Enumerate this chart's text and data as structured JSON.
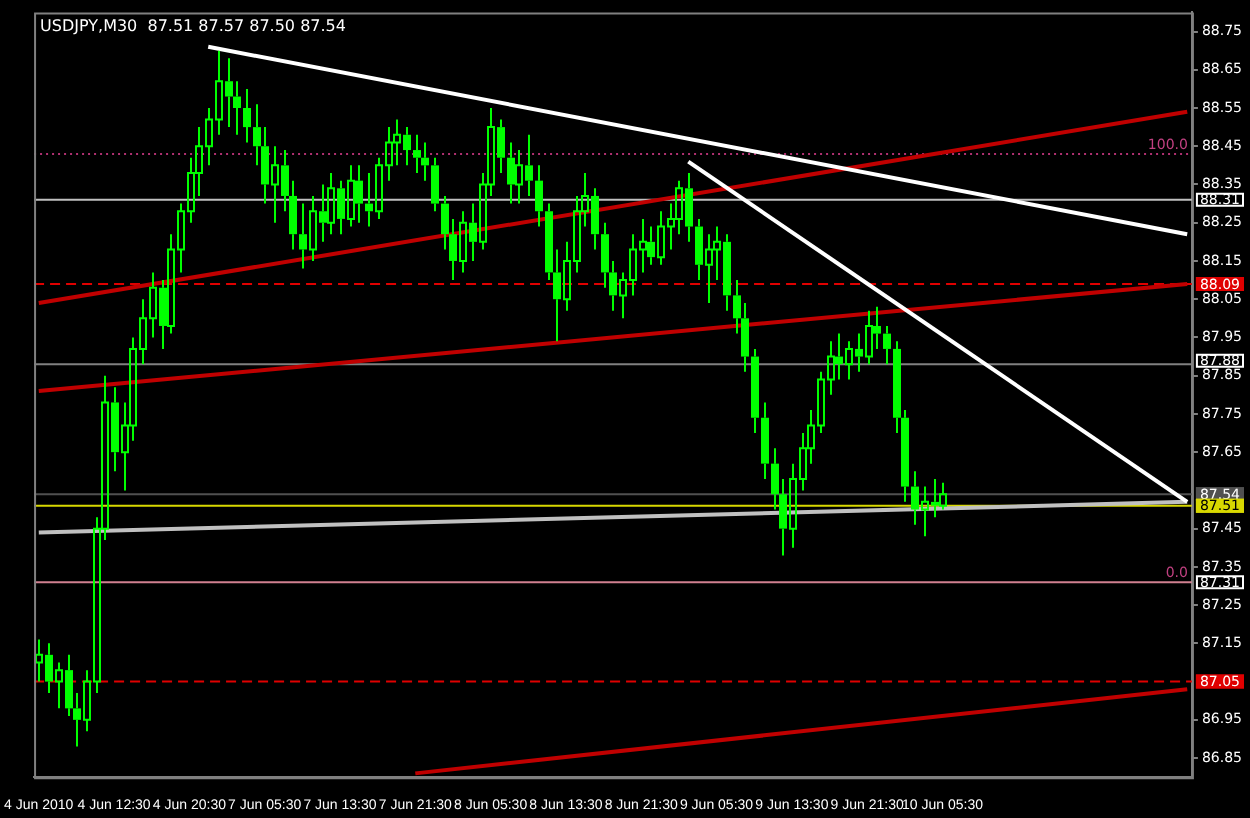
{
  "chart_data": {
    "type": "candlestick",
    "title": "USDJPY,M30  87.51 87.57 87.50 87.54",
    "categories": [
      "4 Jun 2010",
      null,
      null,
      null,
      null,
      null,
      null,
      null,
      "4 Jun 12:30",
      null,
      null,
      null,
      null,
      null,
      null,
      null,
      "4 Jun 20:30",
      null,
      null,
      null,
      null,
      null,
      null,
      null,
      "7 Jun 05:30",
      null,
      null,
      null,
      null,
      null,
      null,
      null,
      "7 Jun 13:30",
      null,
      null,
      null,
      null,
      null,
      null,
      null,
      "7 Jun 21:30",
      null,
      null,
      null,
      null,
      null,
      null,
      null,
      "8 Jun 05:30",
      null,
      null,
      null,
      null,
      null,
      null,
      null,
      "8 Jun 13:30",
      null,
      null,
      null,
      null,
      null,
      null,
      null,
      "8 Jun 21:30",
      null,
      null,
      null,
      null,
      null,
      null,
      null,
      "9 Jun 05:30",
      null,
      null,
      null,
      null,
      null,
      null,
      null,
      "9 Jun 13:30",
      null,
      null,
      null,
      null,
      null,
      null,
      null,
      "9 Jun 21:30",
      null,
      null,
      null,
      null,
      null,
      null,
      null,
      "10 Jun 05:30",
      null,
      null,
      null,
      null,
      null,
      null,
      null,
      null,
      null,
      null,
      null,
      null,
      null,
      null,
      null,
      null,
      null,
      null,
      null,
      null,
      null,
      null,
      null,
      null,
      null,
      null
    ],
    "series": [
      {
        "color": "#00ff00",
        "ohlc": [
          [
            87.1,
            87.16,
            87.05,
            87.12
          ],
          [
            87.12,
            87.15,
            87.02,
            87.05
          ],
          [
            87.05,
            87.1,
            86.98,
            87.08
          ],
          [
            87.08,
            87.12,
            86.96,
            86.98
          ],
          [
            86.98,
            87.02,
            86.88,
            86.95
          ],
          [
            86.95,
            87.08,
            86.92,
            87.05
          ],
          [
            87.05,
            87.48,
            87.02,
            87.45
          ],
          [
            87.45,
            87.85,
            87.42,
            87.78
          ],
          [
            87.78,
            87.82,
            87.6,
            87.65
          ],
          [
            87.65,
            87.78,
            87.55,
            87.72
          ],
          [
            87.72,
            87.95,
            87.68,
            87.92
          ],
          [
            87.92,
            88.05,
            87.88,
            88.0
          ],
          [
            88.0,
            88.12,
            87.95,
            88.08
          ],
          [
            88.08,
            88.1,
            87.92,
            87.98
          ],
          [
            87.98,
            88.22,
            87.96,
            88.18
          ],
          [
            88.18,
            88.3,
            88.12,
            88.28
          ],
          [
            88.28,
            88.42,
            88.25,
            88.38
          ],
          [
            88.38,
            88.5,
            88.32,
            88.45
          ],
          [
            88.45,
            88.55,
            88.4,
            88.52
          ],
          [
            88.52,
            88.7,
            88.48,
            88.62
          ],
          [
            88.62,
            88.68,
            88.5,
            88.58
          ],
          [
            88.58,
            88.62,
            88.48,
            88.55
          ],
          [
            88.55,
            88.6,
            88.46,
            88.5
          ],
          [
            88.5,
            88.56,
            88.4,
            88.45
          ],
          [
            88.45,
            88.5,
            88.3,
            88.35
          ],
          [
            88.35,
            88.45,
            88.25,
            88.4
          ],
          [
            88.4,
            88.44,
            88.28,
            88.32
          ],
          [
            88.32,
            88.36,
            88.18,
            88.22
          ],
          [
            88.22,
            88.3,
            88.13,
            88.18
          ],
          [
            88.18,
            88.32,
            88.15,
            88.28
          ],
          [
            88.28,
            88.35,
            88.2,
            88.25
          ],
          [
            88.25,
            88.38,
            88.22,
            88.34
          ],
          [
            88.34,
            88.36,
            88.22,
            88.26
          ],
          [
            88.26,
            88.4,
            88.24,
            88.36
          ],
          [
            88.36,
            88.4,
            88.25,
            88.3
          ],
          [
            88.3,
            88.38,
            88.24,
            88.28
          ],
          [
            88.28,
            88.42,
            88.26,
            88.4
          ],
          [
            88.4,
            88.5,
            88.36,
            88.46
          ],
          [
            88.46,
            88.52,
            88.4,
            88.48
          ],
          [
            88.48,
            88.5,
            88.4,
            88.44
          ],
          [
            88.44,
            88.48,
            88.38,
            88.42
          ],
          [
            88.42,
            88.46,
            88.36,
            88.4
          ],
          [
            88.4,
            88.42,
            88.28,
            88.3
          ],
          [
            88.3,
            88.32,
            88.18,
            88.22
          ],
          [
            88.22,
            88.26,
            88.1,
            88.15
          ],
          [
            88.15,
            88.28,
            88.12,
            88.25
          ],
          [
            88.25,
            88.3,
            88.15,
            88.2
          ],
          [
            88.2,
            88.38,
            88.18,
            88.35
          ],
          [
            88.35,
            88.55,
            88.32,
            88.5
          ],
          [
            88.5,
            88.52,
            88.38,
            88.42
          ],
          [
            88.42,
            88.46,
            88.3,
            88.35
          ],
          [
            88.35,
            88.44,
            88.3,
            88.4
          ],
          [
            88.4,
            88.48,
            88.32,
            88.36
          ],
          [
            88.36,
            88.4,
            88.24,
            88.28
          ],
          [
            88.28,
            88.3,
            88.1,
            88.12
          ],
          [
            88.12,
            88.18,
            87.94,
            88.05
          ],
          [
            88.05,
            88.2,
            88.02,
            88.15
          ],
          [
            88.15,
            88.32,
            88.12,
            88.28
          ],
          [
            88.28,
            88.38,
            88.24,
            88.32
          ],
          [
            88.32,
            88.34,
            88.18,
            88.22
          ],
          [
            88.22,
            88.25,
            88.08,
            88.12
          ],
          [
            88.12,
            88.15,
            88.02,
            88.06
          ],
          [
            88.06,
            88.12,
            88.0,
            88.1
          ],
          [
            88.1,
            88.22,
            88.06,
            88.18
          ],
          [
            88.18,
            88.26,
            88.12,
            88.2
          ],
          [
            88.2,
            88.24,
            88.14,
            88.16
          ],
          [
            88.16,
            88.28,
            88.14,
            88.24
          ],
          [
            88.24,
            88.3,
            88.18,
            88.26
          ],
          [
            88.26,
            88.36,
            88.22,
            88.34
          ],
          [
            88.34,
            88.38,
            88.2,
            88.24
          ],
          [
            88.24,
            88.26,
            88.1,
            88.14
          ],
          [
            88.14,
            88.22,
            88.04,
            88.18
          ],
          [
            88.18,
            88.24,
            88.1,
            88.2
          ],
          [
            88.2,
            88.22,
            88.02,
            88.06
          ],
          [
            88.06,
            88.1,
            87.96,
            88.0
          ],
          [
            88.0,
            88.04,
            87.86,
            87.9
          ],
          [
            87.9,
            87.92,
            87.7,
            87.74
          ],
          [
            87.74,
            87.78,
            87.58,
            87.62
          ],
          [
            87.62,
            87.66,
            87.5,
            87.54
          ],
          [
            87.54,
            87.58,
            87.38,
            87.45
          ],
          [
            87.45,
            87.62,
            87.4,
            87.58
          ],
          [
            87.58,
            87.7,
            87.55,
            87.66
          ],
          [
            87.66,
            87.76,
            87.62,
            87.72
          ],
          [
            87.72,
            87.86,
            87.7,
            87.84
          ],
          [
            87.84,
            87.94,
            87.8,
            87.9
          ],
          [
            87.9,
            87.96,
            87.84,
            87.88
          ],
          [
            87.88,
            87.94,
            87.84,
            87.92
          ],
          [
            87.92,
            87.96,
            87.86,
            87.9
          ],
          [
            87.9,
            88.02,
            87.88,
            87.98
          ],
          [
            87.98,
            88.03,
            87.92,
            87.96
          ],
          [
            87.96,
            87.98,
            87.88,
            87.92
          ],
          [
            87.92,
            87.94,
            87.7,
            87.74
          ],
          [
            87.74,
            87.76,
            87.52,
            87.56
          ],
          [
            87.56,
            87.6,
            87.46,
            87.5
          ],
          [
            87.5,
            87.56,
            87.43,
            87.52
          ],
          [
            87.52,
            87.58,
            87.48,
            87.51
          ],
          [
            87.51,
            87.57,
            87.5,
            87.54
          ],
          null,
          null,
          null,
          null,
          null,
          null,
          null,
          null,
          null,
          null,
          null,
          null,
          null,
          null,
          null,
          null,
          null,
          null,
          null,
          null,
          null,
          null,
          null,
          null,
          null,
          null
        ]
      },
      {
        "type": "line",
        "color": "#ffffff",
        "values": [
          null,
          null,
          null,
          null,
          null,
          null,
          null,
          null,
          null,
          null,
          null,
          null,
          null,
          null,
          null,
          null,
          null,
          null,
          88.71,
          null,
          null,
          null,
          null,
          null,
          null,
          null,
          null,
          null,
          null,
          null,
          null,
          null,
          null,
          null,
          null,
          null,
          null,
          null,
          null,
          null,
          null,
          null,
          null,
          null,
          null,
          null,
          null,
          null,
          null,
          null,
          null,
          null,
          null,
          null,
          null,
          null,
          null,
          null,
          null,
          null,
          null,
          null,
          null,
          null,
          null,
          null,
          null,
          null,
          null,
          null,
          null,
          null,
          null,
          null,
          null,
          null,
          null,
          null,
          null,
          null,
          null,
          null,
          null,
          null,
          null,
          null,
          null,
          null,
          null,
          null,
          null,
          null,
          null,
          null,
          null,
          null,
          null,
          null,
          null,
          null,
          null,
          null,
          null,
          null,
          null,
          null,
          null,
          null,
          null,
          null,
          null,
          null,
          null,
          null,
          null,
          null,
          null,
          null,
          null,
          null,
          null,
          null,
          88.22
        ]
      },
      {
        "type": "line",
        "color": "#ffffff",
        "values": [
          null,
          null,
          null,
          null,
          null,
          null,
          null,
          null,
          null,
          null,
          null,
          null,
          null,
          null,
          null,
          null,
          null,
          null,
          null,
          null,
          null,
          null,
          null,
          null,
          null,
          null,
          null,
          null,
          null,
          null,
          null,
          null,
          null,
          null,
          null,
          null,
          null,
          null,
          null,
          null,
          null,
          null,
          null,
          null,
          null,
          null,
          null,
          null,
          null,
          null,
          null,
          null,
          null,
          null,
          null,
          null,
          null,
          null,
          null,
          null,
          null,
          null,
          null,
          null,
          null,
          null,
          null,
          null,
          null,
          88.41,
          null,
          null,
          null,
          null,
          null,
          null,
          null,
          null,
          null,
          null,
          null,
          null,
          null,
          null,
          null,
          null,
          null,
          null,
          null,
          null,
          null,
          null,
          null,
          null,
          null,
          null,
          null,
          null,
          null,
          null,
          null,
          null,
          null,
          null,
          null,
          null,
          null,
          null,
          null,
          null,
          null,
          null,
          null,
          null,
          null,
          null,
          null,
          null,
          null,
          null,
          null,
          null,
          87.52
        ]
      },
      {
        "type": "line",
        "color": "#c00000",
        "values": [
          88.04,
          null,
          null,
          null,
          null,
          null,
          null,
          null,
          null,
          null,
          null,
          null,
          null,
          null,
          null,
          null,
          null,
          null,
          null,
          null,
          null,
          null,
          null,
          null,
          null,
          null,
          null,
          null,
          null,
          null,
          null,
          null,
          null,
          null,
          null,
          null,
          null,
          null,
          null,
          null,
          null,
          null,
          null,
          null,
          null,
          null,
          null,
          null,
          null,
          null,
          null,
          null,
          null,
          null,
          null,
          null,
          null,
          null,
          null,
          null,
          null,
          null,
          null,
          null,
          null,
          null,
          null,
          null,
          null,
          null,
          null,
          null,
          null,
          null,
          null,
          null,
          null,
          null,
          null,
          null,
          null,
          null,
          null,
          null,
          null,
          null,
          null,
          null,
          null,
          null,
          null,
          null,
          null,
          null,
          null,
          null,
          null,
          null,
          null,
          null,
          null,
          null,
          null,
          null,
          null,
          null,
          null,
          null,
          null,
          null,
          null,
          null,
          null,
          null,
          null,
          null,
          null,
          null,
          null,
          null,
          null,
          null,
          88.54
        ]
      },
      {
        "type": "line",
        "color": "#c00000",
        "values": [
          87.81,
          null,
          null,
          null,
          null,
          null,
          null,
          null,
          null,
          null,
          null,
          null,
          null,
          null,
          null,
          null,
          null,
          null,
          null,
          null,
          null,
          null,
          null,
          null,
          null,
          null,
          null,
          null,
          null,
          null,
          null,
          null,
          null,
          null,
          null,
          null,
          null,
          null,
          null,
          null,
          null,
          null,
          null,
          null,
          null,
          null,
          null,
          null,
          null,
          null,
          null,
          null,
          null,
          null,
          null,
          null,
          null,
          null,
          null,
          null,
          null,
          null,
          null,
          null,
          null,
          null,
          null,
          null,
          null,
          null,
          null,
          null,
          null,
          null,
          null,
          null,
          null,
          null,
          null,
          null,
          null,
          null,
          null,
          null,
          null,
          null,
          null,
          null,
          null,
          null,
          null,
          null,
          null,
          null,
          null,
          null,
          null,
          null,
          null,
          null,
          null,
          null,
          null,
          null,
          null,
          null,
          null,
          null,
          null,
          null,
          null,
          null,
          null,
          null,
          null,
          null,
          null,
          null,
          null,
          null,
          null,
          null,
          88.09
        ]
      },
      {
        "type": "line",
        "color": "#c00000",
        "values": [
          null,
          null,
          null,
          null,
          null,
          null,
          null,
          null,
          null,
          null,
          null,
          null,
          null,
          null,
          null,
          null,
          null,
          null,
          null,
          null,
          null,
          null,
          null,
          null,
          null,
          null,
          null,
          null,
          null,
          null,
          null,
          null,
          null,
          null,
          null,
          null,
          null,
          null,
          null,
          null,
          86.81,
          null,
          null,
          null,
          null,
          null,
          null,
          null,
          null,
          null,
          null,
          null,
          null,
          null,
          null,
          null,
          null,
          null,
          null,
          null,
          null,
          null,
          null,
          null,
          null,
          null,
          null,
          null,
          null,
          null,
          null,
          null,
          null,
          null,
          null,
          null,
          null,
          null,
          null,
          null,
          null,
          null,
          null,
          null,
          null,
          null,
          null,
          null,
          null,
          null,
          null,
          null,
          null,
          null,
          null,
          null,
          null,
          null,
          null,
          null,
          null,
          null,
          null,
          null,
          null,
          null,
          null,
          null,
          null,
          null,
          null,
          null,
          null,
          null,
          null,
          null,
          null,
          null,
          null,
          null,
          null,
          null,
          87.03
        ]
      },
      {
        "type": "line",
        "color": "#c0c0c0",
        "values": [
          87.44,
          null,
          null,
          null,
          null,
          null,
          null,
          null,
          null,
          null,
          null,
          null,
          null,
          null,
          null,
          null,
          null,
          null,
          null,
          null,
          null,
          null,
          null,
          null,
          null,
          null,
          null,
          null,
          null,
          null,
          null,
          null,
          null,
          null,
          null,
          null,
          null,
          null,
          null,
          null,
          null,
          null,
          null,
          null,
          null,
          null,
          null,
          null,
          null,
          null,
          null,
          null,
          null,
          null,
          null,
          null,
          null,
          null,
          null,
          null,
          null,
          null,
          null,
          null,
          null,
          null,
          null,
          null,
          null,
          null,
          null,
          null,
          null,
          null,
          null,
          null,
          null,
          null,
          null,
          null,
          null,
          null,
          null,
          null,
          null,
          null,
          null,
          null,
          null,
          null,
          null,
          null,
          null,
          null,
          null,
          null,
          null,
          null,
          null,
          null,
          null,
          null,
          null,
          null,
          null,
          null,
          null,
          null,
          null,
          null,
          null,
          null,
          null,
          null,
          null,
          null,
          null,
          null,
          null,
          null,
          null,
          null,
          87.52
        ]
      }
    ],
    "ylim": [
      86.8,
      88.8
    ],
    "yticks": [
      88.75,
      88.65,
      88.55,
      88.45,
      88.35,
      88.25,
      88.15,
      88.05,
      87.95,
      87.85,
      87.75,
      87.65,
      87.45,
      87.35,
      87.25,
      87.15,
      86.95,
      86.85
    ],
    "ref_lines": [
      {
        "axis": "y",
        "value": 88.43,
        "label": null,
        "color": "#b03070",
        "line_style": "dotted"
      },
      {
        "axis": "y",
        "value": 88.31,
        "label": "88.31",
        "color": "#c0c0c0",
        "line_style": "solid"
      },
      {
        "axis": "y",
        "value": 88.09,
        "label": "88.09",
        "color": "#e00000",
        "line_style": "dashed"
      },
      {
        "axis": "y",
        "value": 87.88,
        "label": "87.88",
        "color": "#808080",
        "line_style": "solid"
      },
      {
        "axis": "y",
        "value": 87.54,
        "label": "87.54",
        "color": "#505050",
        "line_style": "solid"
      },
      {
        "axis": "y",
        "value": 87.51,
        "label": "87.51",
        "color": "#d8d800",
        "line_style": "solid"
      },
      {
        "axis": "y",
        "value": 87.31,
        "label": "87.31",
        "color": "#d08090",
        "line_style": "solid"
      },
      {
        "axis": "y",
        "value": 87.05,
        "label": "87.05",
        "color": "#e00000",
        "line_style": "dashed"
      }
    ],
    "annotations": [
      {
        "text": "100.0",
        "y": 88.43
      },
      {
        "text": "0.0",
        "y": 87.31
      }
    ]
  }
}
